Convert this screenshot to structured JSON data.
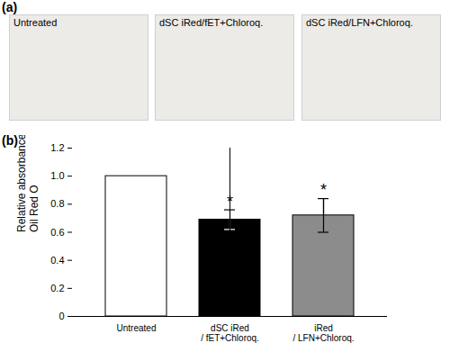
{
  "panel_a": {
    "label": "(a)",
    "images": [
      "Untreated",
      "dSC iRed/fET+Chloroq.",
      "dSC iRed/LFN+Chloroq."
    ]
  },
  "chart_data": {
    "type": "bar",
    "panel": "(b)",
    "categories": [
      "Untreated",
      "dSC iRed\n/ fET+Chloroq.",
      "iRed\n/ LFN+Chloroq."
    ],
    "values": [
      1.0,
      0.69,
      0.72
    ],
    "errors": [
      null,
      0.07,
      0.12
    ],
    "significance": [
      null,
      "*",
      "*"
    ],
    "colors": [
      "#ffffff",
      "#000000",
      "#8c8c8c"
    ],
    "y_label": "Relative absorbance of\nOil Red O",
    "ylim": [
      0,
      1.2
    ],
    "yticks": [
      0,
      0.2,
      0.4,
      0.6,
      0.8,
      {
        "value": 1,
        "label": "1.0"
      },
      1.2
    ],
    "grid": false
  }
}
